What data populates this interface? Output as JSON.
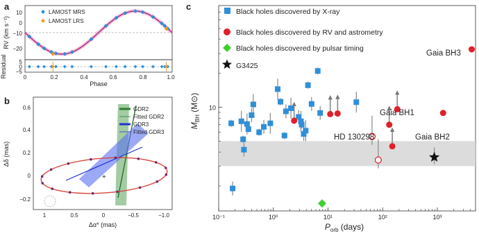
{
  "panel_a": {
    "label": "a",
    "ylabel_main": "RV (km s⁻¹)",
    "ylabel_res": "Residual",
    "xlabel": "Phase",
    "yticks_main": [
      "10",
      "0",
      "−10",
      "−20"
    ],
    "yticks_res": [
      "5",
      "0",
      "−5"
    ],
    "xticks": [
      "0",
      "0.2",
      "0.4",
      "0.6",
      "0.8",
      "1.0"
    ],
    "legend": [
      "LAMOST MRS",
      "LAMOST LRS"
    ],
    "colors": {
      "mrs": "#2f8fd8",
      "lrs": "#f39a1e",
      "curve": "#b0308c"
    }
  },
  "panel_b": {
    "label": "b",
    "ylabel": "Δδ (mas)",
    "xlabel": "Δα* (mas)",
    "yticks": [
      "0.6",
      "0.4",
      "0.2",
      "0",
      "−0.2"
    ],
    "xticks": [
      "1",
      "0.5",
      "0",
      "−0.5",
      "−1.0"
    ],
    "legend": [
      "GDR2",
      "Fitted GDR2",
      "GDR3",
      "Fitted GDR3"
    ],
    "colors": {
      "gdr2": "#2e7d32",
      "gdr3": "#2233cc",
      "orbit": "#d9463b"
    }
  },
  "panel_c": {
    "label": "c",
    "legend": [
      {
        "label": "Black holes discovered by X-ray",
        "color": "#2f8fd8",
        "marker": "square"
      },
      {
        "label": "Black holes discovered by RV and astrometry",
        "color": "#e0202a",
        "marker": "circle"
      },
      {
        "label": "Black holes discovered by pulsar timing",
        "color": "#3fcf2f",
        "marker": "diamond"
      },
      {
        "label": "G3425",
        "color": "#111111",
        "marker": "star"
      }
    ],
    "annotations": [
      "Gaia BH3",
      "Gaia BH1",
      "HD 130298",
      "Gaia BH2"
    ],
    "chart_data": {
      "type": "scatter",
      "xlabel": "P_orb (days)",
      "ylabel": "M_BH (M⊙)",
      "x_scale": "log",
      "y_scale": "log",
      "xlim": [
        0.1,
        5000
      ],
      "ylim": [
        1.2,
        80
      ],
      "xticks": [
        "10⁻¹",
        "10⁰",
        "10¹",
        "10²",
        "10³"
      ],
      "yticks": [
        "10"
      ],
      "gray_band_y": [
        3,
        5
      ],
      "series": [
        {
          "name": "Black holes discovered by X-ray",
          "marker": "square",
          "points": [
            {
              "x": 0.17,
              "y": 7.2
            },
            {
              "x": 0.18,
              "y": 1.9
            },
            {
              "x": 0.26,
              "y": 7.5
            },
            {
              "x": 0.28,
              "y": 5.2
            },
            {
              "x": 0.29,
              "y": 4.2
            },
            {
              "x": 0.33,
              "y": 7.1
            },
            {
              "x": 0.35,
              "y": 6.4
            },
            {
              "x": 0.4,
              "y": 8.5
            },
            {
              "x": 0.43,
              "y": 10.6
            },
            {
              "x": 0.55,
              "y": 6.0
            },
            {
              "x": 0.67,
              "y": 6.7
            },
            {
              "x": 0.88,
              "y": 7.2
            },
            {
              "x": 1.6,
              "y": 5.6
            },
            {
              "x": 1.7,
              "y": 9.2
            },
            {
              "x": 2.1,
              "y": 9.8
            },
            {
              "x": 3.3,
              "y": 7.0
            },
            {
              "x": 3.6,
              "y": 5.8
            },
            {
              "x": 3.9,
              "y": 6.2
            },
            {
              "x": 4.3,
              "y": 15.7
            },
            {
              "x": 5.0,
              "y": 10.7
            },
            {
              "x": 1.2,
              "y": 14.5
            },
            {
              "x": 1.35,
              "y": 11.2
            },
            {
              "x": 2.9,
              "y": 8.2
            },
            {
              "x": 3.2,
              "y": 7.5
            },
            {
              "x": 6.5,
              "y": 21.0
            },
            {
              "x": 7.2,
              "y": 8.9
            },
            {
              "x": 33.0,
              "y": 11.1
            }
          ]
        },
        {
          "name": "Black holes discovered by RV and astrometry",
          "marker": "circle",
          "points": [
            {
              "x": 2.4,
              "y": 7.6,
              "filled": true
            },
            {
              "x": 11.0,
              "y": 8.7,
              "filled": true
            },
            {
              "x": 15.0,
              "y": 8.8,
              "filled": true
            },
            {
              "x": 64.0,
              "y": 5.5,
              "filled": false
            },
            {
              "x": 83.0,
              "y": 3.4,
              "filled": false
            },
            {
              "x": 132.0,
              "y": 7.0,
              "filled": true
            },
            {
              "x": 150.0,
              "y": 4.5,
              "filled": true
            },
            {
              "x": 185.0,
              "y": 9.6,
              "filled": true
            },
            {
              "x": 1277.0,
              "y": 8.9,
              "filled": true
            },
            {
              "x": 4254.0,
              "y": 32.7,
              "filled": true
            }
          ]
        },
        {
          "name": "Black holes discovered by pulsar timing",
          "marker": "diamond",
          "points": [
            {
              "x": 7.8,
              "y": 1.4
            }
          ]
        },
        {
          "name": "G3425",
          "marker": "star",
          "points": [
            {
              "x": 880.0,
              "y": 3.6
            }
          ]
        }
      ]
    }
  }
}
